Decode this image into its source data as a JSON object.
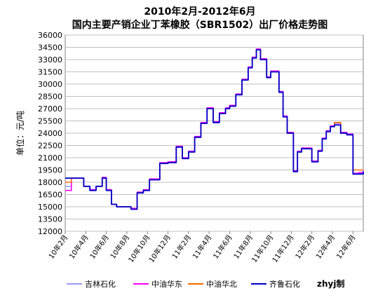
{
  "chart_data": {
    "type": "line",
    "title": "2010年2月-2012年6月",
    "subtitle": "国内主要产销企业丁苯橡胶（SBR1502）出厂价格走势图",
    "xlabel": "",
    "ylabel": "单位：元/吨",
    "ylim": [
      12000,
      36000
    ],
    "y_ticks": [
      12000,
      13500,
      15000,
      16500,
      18000,
      19500,
      21000,
      22500,
      24000,
      25500,
      27000,
      28500,
      30000,
      31500,
      33000,
      34500,
      36000
    ],
    "x_tick_labels": [
      "10年2月",
      "10年4月",
      "10年6月",
      "10年8月",
      "10年10月",
      "10年12月",
      "11年2月",
      "11年4月",
      "11年6月",
      "11年8月",
      "11年10月",
      "11年12月",
      "12年2月",
      "12年4月",
      "12年6月"
    ],
    "x_range": [
      0,
      29
    ],
    "grid": true,
    "legend_position": "bottom",
    "watermark": "zhyj制",
    "series": [
      {
        "name": "吉林石化",
        "color": "#9999ff",
        "x": [
          0,
          0.6,
          1.8,
          2.4,
          3,
          3.6,
          4,
          4.5,
          5,
          5.6,
          6.4,
          7,
          7.6,
          8.2,
          8.6,
          9.2,
          10,
          10.8,
          11.4,
          12,
          12.6,
          13.2,
          13.8,
          14.4,
          15,
          15.6,
          16,
          16.6,
          17.2,
          17.8,
          18.2,
          18.6,
          19,
          19.6,
          20,
          20.4,
          20.8,
          21.2,
          21.6,
          22.2,
          22.6,
          23,
          23.6,
          24,
          24.6,
          25,
          25.4,
          25.8,
          26.2,
          26.8,
          27.4,
          28,
          28.6,
          29
        ],
        "y": [
          17500,
          18500,
          17500,
          17000,
          17500,
          18500,
          17000,
          15300,
          15000,
          15000,
          14700,
          16700,
          17000,
          18300,
          18300,
          20300,
          20400,
          22300,
          20900,
          21700,
          23500,
          25200,
          27000,
          25300,
          26400,
          27000,
          27300,
          28700,
          30500,
          32000,
          33200,
          34200,
          33000,
          30800,
          31500,
          31500,
          29000,
          26000,
          24000,
          19300,
          21700,
          22100,
          22100,
          20500,
          21800,
          23300,
          24200,
          24800,
          25200,
          24000,
          23800,
          19000,
          19100,
          19300
        ]
      },
      {
        "name": "中油华东",
        "color": "#ff00ff",
        "x": [
          0,
          0.6,
          1.8,
          2.4,
          3,
          3.6,
          4,
          4.5,
          5,
          5.6,
          6.4,
          7,
          7.6,
          8.2,
          8.6,
          9.2,
          10,
          10.8,
          11.4,
          12,
          12.6,
          13.2,
          13.8,
          14.4,
          15,
          15.6,
          16,
          16.6,
          17.2,
          17.8,
          18.2,
          18.6,
          19,
          19.6,
          20,
          20.4,
          20.8,
          21.2,
          21.6,
          22.2,
          22.6,
          23,
          23.6,
          24,
          24.6,
          25,
          25.4,
          25.8,
          26.2,
          26.8,
          27.4,
          28,
          28.6,
          29
        ],
        "y": [
          17000,
          18500,
          17500,
          17100,
          17500,
          18600,
          17100,
          15300,
          15000,
          15000,
          14800,
          16800,
          17100,
          18400,
          18400,
          20400,
          20500,
          22400,
          21000,
          21800,
          23600,
          25300,
          27100,
          25400,
          26500,
          27100,
          27400,
          28800,
          30600,
          32100,
          33300,
          34300,
          33100,
          30900,
          31600,
          31600,
          29100,
          26100,
          24100,
          19400,
          21800,
          22200,
          22200,
          20600,
          21900,
          23400,
          24300,
          24900,
          25300,
          24100,
          23900,
          19100,
          19200,
          19400
        ]
      },
      {
        "name": "中油华北",
        "color": "#ff6600",
        "x": [
          0,
          0.6,
          1.8,
          2.4,
          3,
          3.6,
          4,
          4.5,
          5,
          5.6,
          6.4,
          7,
          7.6,
          8.2,
          8.6,
          9.2,
          10,
          10.8,
          11.4,
          12,
          12.6,
          13.2,
          13.8,
          14.4,
          15,
          15.6,
          16,
          16.6,
          17.2,
          17.8,
          18.2,
          18.6,
          19,
          19.6,
          20,
          20.4,
          20.8,
          21.2,
          21.6,
          22.2,
          22.6,
          23,
          23.6,
          24,
          24.6,
          25,
          25.4,
          25.8,
          26.2,
          26.8,
          27.4,
          28,
          28.6,
          29
        ],
        "y": [
          18000,
          18500,
          17500,
          17000,
          17500,
          18500,
          17000,
          15300,
          15000,
          15000,
          14700,
          16700,
          17000,
          18300,
          18300,
          20300,
          20400,
          22300,
          20900,
          21700,
          23500,
          25200,
          27000,
          25300,
          26400,
          27000,
          27300,
          28700,
          30500,
          32000,
          33200,
          34200,
          33000,
          30800,
          31500,
          31500,
          29000,
          26000,
          24000,
          19300,
          21700,
          22100,
          22100,
          20500,
          21800,
          23300,
          24200,
          24800,
          25300,
          24000,
          23800,
          19500,
          19500,
          19500
        ]
      },
      {
        "name": "齐鲁石化",
        "color": "#0000cc",
        "x": [
          0,
          0.6,
          1.8,
          2.4,
          3,
          3.6,
          4,
          4.5,
          5,
          5.6,
          6.4,
          7,
          7.6,
          8.2,
          8.6,
          9.2,
          10,
          10.8,
          11.4,
          12,
          12.6,
          13.2,
          13.8,
          14.4,
          15,
          15.6,
          16,
          16.6,
          17.2,
          17.8,
          18.2,
          18.6,
          19,
          19.6,
          20,
          20.4,
          20.8,
          21.2,
          21.6,
          22.2,
          22.6,
          23,
          23.6,
          24,
          24.6,
          25,
          25.4,
          25.8,
          26.2,
          26.8,
          27.4,
          28,
          28.6,
          29
        ],
        "y": [
          18500,
          18500,
          17500,
          17000,
          17500,
          18500,
          17000,
          15300,
          15000,
          15000,
          14700,
          16700,
          17000,
          18300,
          18300,
          20300,
          20400,
          22300,
          20900,
          21700,
          23500,
          25200,
          27000,
          25300,
          26400,
          27000,
          27300,
          28700,
          30500,
          32000,
          33200,
          34200,
          33000,
          30800,
          31500,
          31500,
          29000,
          26000,
          24000,
          19300,
          21700,
          22100,
          22100,
          20500,
          21800,
          23300,
          24200,
          24800,
          25000,
          24000,
          23800,
          19000,
          19000,
          19300
        ]
      }
    ]
  }
}
